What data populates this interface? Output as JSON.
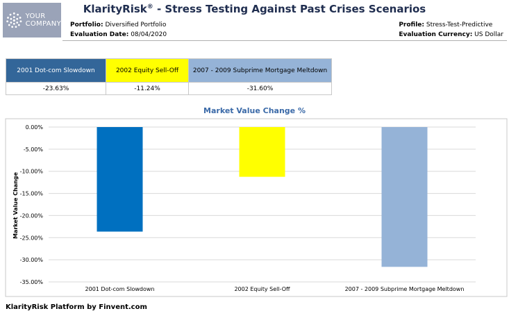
{
  "header": {
    "logo_text_1": "YOUR",
    "logo_text_2": "COMPANY",
    "title_brand": "KlarityRisk",
    "title_reg": "®",
    "title_rest": " - Stress Testing Against Past Crises Scenarios",
    "portfolio_label": "Portfolio:",
    "portfolio_value": "Diversified Portfolio",
    "eval_date_label": "Evaluation Date:",
    "eval_date_value": "08/04/2020",
    "profile_label": "Profile:",
    "profile_value": "Stress-Test-Predictive",
    "currency_label": "Evaluation Currency:",
    "currency_value": "US Dollar"
  },
  "scenarios": [
    {
      "name": "2001 Dot-com Slowdown",
      "value": "-23.63%",
      "header_color": "#336699",
      "header_text_color": "#ffffff"
    },
    {
      "name": "2002 Equity Sell-Off",
      "value": "-11.24%",
      "header_color": "#ffff00",
      "header_text_color": "#000000"
    },
    {
      "name": "2007 - 2009 Subprime Mortgage Meltdown",
      "value": "-31.60%",
      "header_color": "#95b3d7",
      "header_text_color": "#000000"
    }
  ],
  "chart_title": "Market Value Change %",
  "chart_data": {
    "type": "bar",
    "title": "Market Value Change %",
    "xlabel": "",
    "ylabel": "Market Value Change",
    "categories": [
      "2001 Dot-com Slowdown",
      "2002 Equity Sell-Off",
      "2007 - 2009 Subprime Mortgage Meltdown"
    ],
    "values": [
      -23.63,
      -11.24,
      -31.6
    ],
    "colors": [
      "#0070c0",
      "#ffff00",
      "#95b3d7"
    ],
    "ylim": [
      -35,
      0
    ],
    "yticks": [
      0,
      -5,
      -10,
      -15,
      -20,
      -25,
      -30,
      -35
    ],
    "ytick_labels": [
      "0.00%",
      "-5.00%",
      "-10.00%",
      "-15.00%",
      "-20.00%",
      "-25.00%",
      "-30.00%",
      "-35.00%"
    ],
    "grid": true
  },
  "footer": "KlarityRisk Platform by Finvent.com"
}
